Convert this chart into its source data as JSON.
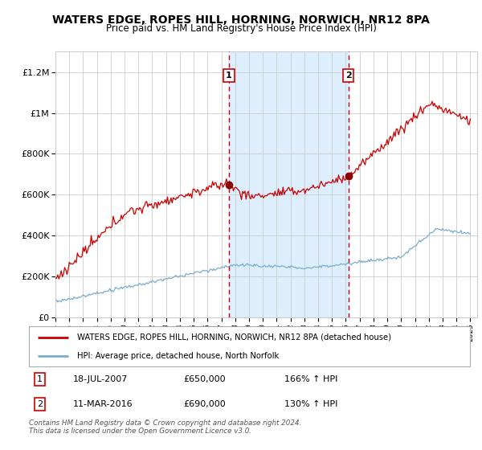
{
  "title": "WATERS EDGE, ROPES HILL, HORNING, NORWICH, NR12 8PA",
  "subtitle": "Price paid vs. HM Land Registry's House Price Index (HPI)",
  "title_fontsize": 10,
  "subtitle_fontsize": 8.5,
  "ylim": [
    0,
    1300000
  ],
  "xlim_start": 1995.0,
  "xlim_end": 2025.5,
  "red_line_color": "#cc0000",
  "blue_line_color": "#7aadcc",
  "shaded_color": "#ddeeff",
  "grid_color": "#cccccc",
  "background_color": "#ffffff",
  "marker1_x": 2007.54,
  "marker1_y": 650000,
  "marker2_x": 2016.19,
  "marker2_y": 690000,
  "legend_label_red": "WATERS EDGE, ROPES HILL, HORNING, NORWICH, NR12 8PA (detached house)",
  "legend_label_blue": "HPI: Average price, detached house, North Norfolk",
  "footer": "Contains HM Land Registry data © Crown copyright and database right 2024.\nThis data is licensed under the Open Government Licence v3.0.",
  "ytick_labels": [
    "£0",
    "£200K",
    "£400K",
    "£600K",
    "£800K",
    "£1M",
    "£1.2M"
  ],
  "ytick_values": [
    0,
    200000,
    400000,
    600000,
    800000,
    1000000,
    1200000
  ],
  "xtick_years": [
    1995,
    1996,
    1997,
    1998,
    1999,
    2000,
    2001,
    2002,
    2003,
    2004,
    2005,
    2006,
    2007,
    2008,
    2009,
    2010,
    2011,
    2012,
    2013,
    2014,
    2015,
    2016,
    2017,
    2018,
    2019,
    2020,
    2021,
    2022,
    2023,
    2024,
    2025
  ]
}
